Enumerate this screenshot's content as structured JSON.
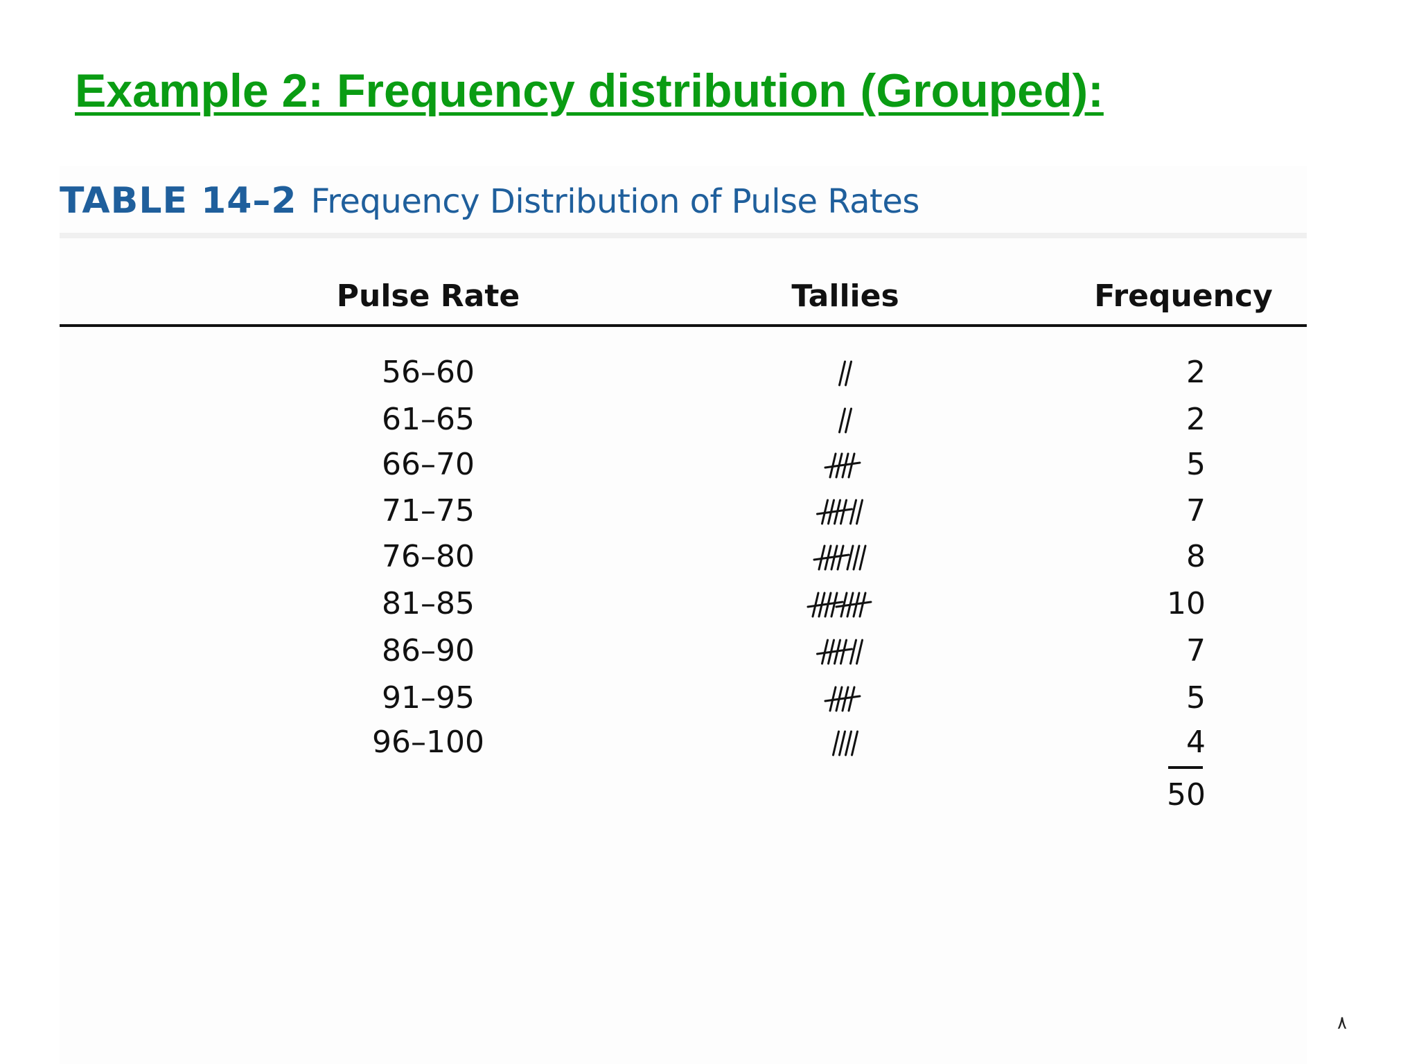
{
  "slide": {
    "title": "Example 2: Frequency distribution (Grouped):",
    "page_number": "٨"
  },
  "table": {
    "label": "TABLE 14–2",
    "caption": "Frequency Distribution of Pulse Rates",
    "columns": {
      "pulse_rate": "Pulse Rate",
      "tallies": "Tallies",
      "frequency": "Frequency"
    },
    "rows": [
      {
        "range": "56–60",
        "tally": 2,
        "frequency": "2"
      },
      {
        "range": "61–65",
        "tally": 2,
        "frequency": "2"
      },
      {
        "range": "66–70",
        "tally": 5,
        "frequency": "5"
      },
      {
        "range": "71–75",
        "tally": 7,
        "frequency": "7"
      },
      {
        "range": "76–80",
        "tally": 8,
        "frequency": "8"
      },
      {
        "range": "81–85",
        "tally": 10,
        "frequency": "10"
      },
      {
        "range": "86–90",
        "tally": 7,
        "frequency": "7"
      },
      {
        "range": "91–95",
        "tally": 5,
        "frequency": "5"
      },
      {
        "range": "96–100",
        "tally": 4,
        "frequency": "4"
      }
    ],
    "total": "50"
  },
  "colors": {
    "title": "#0a9c13",
    "caption": "#1f5f9c",
    "text": "#111111"
  }
}
